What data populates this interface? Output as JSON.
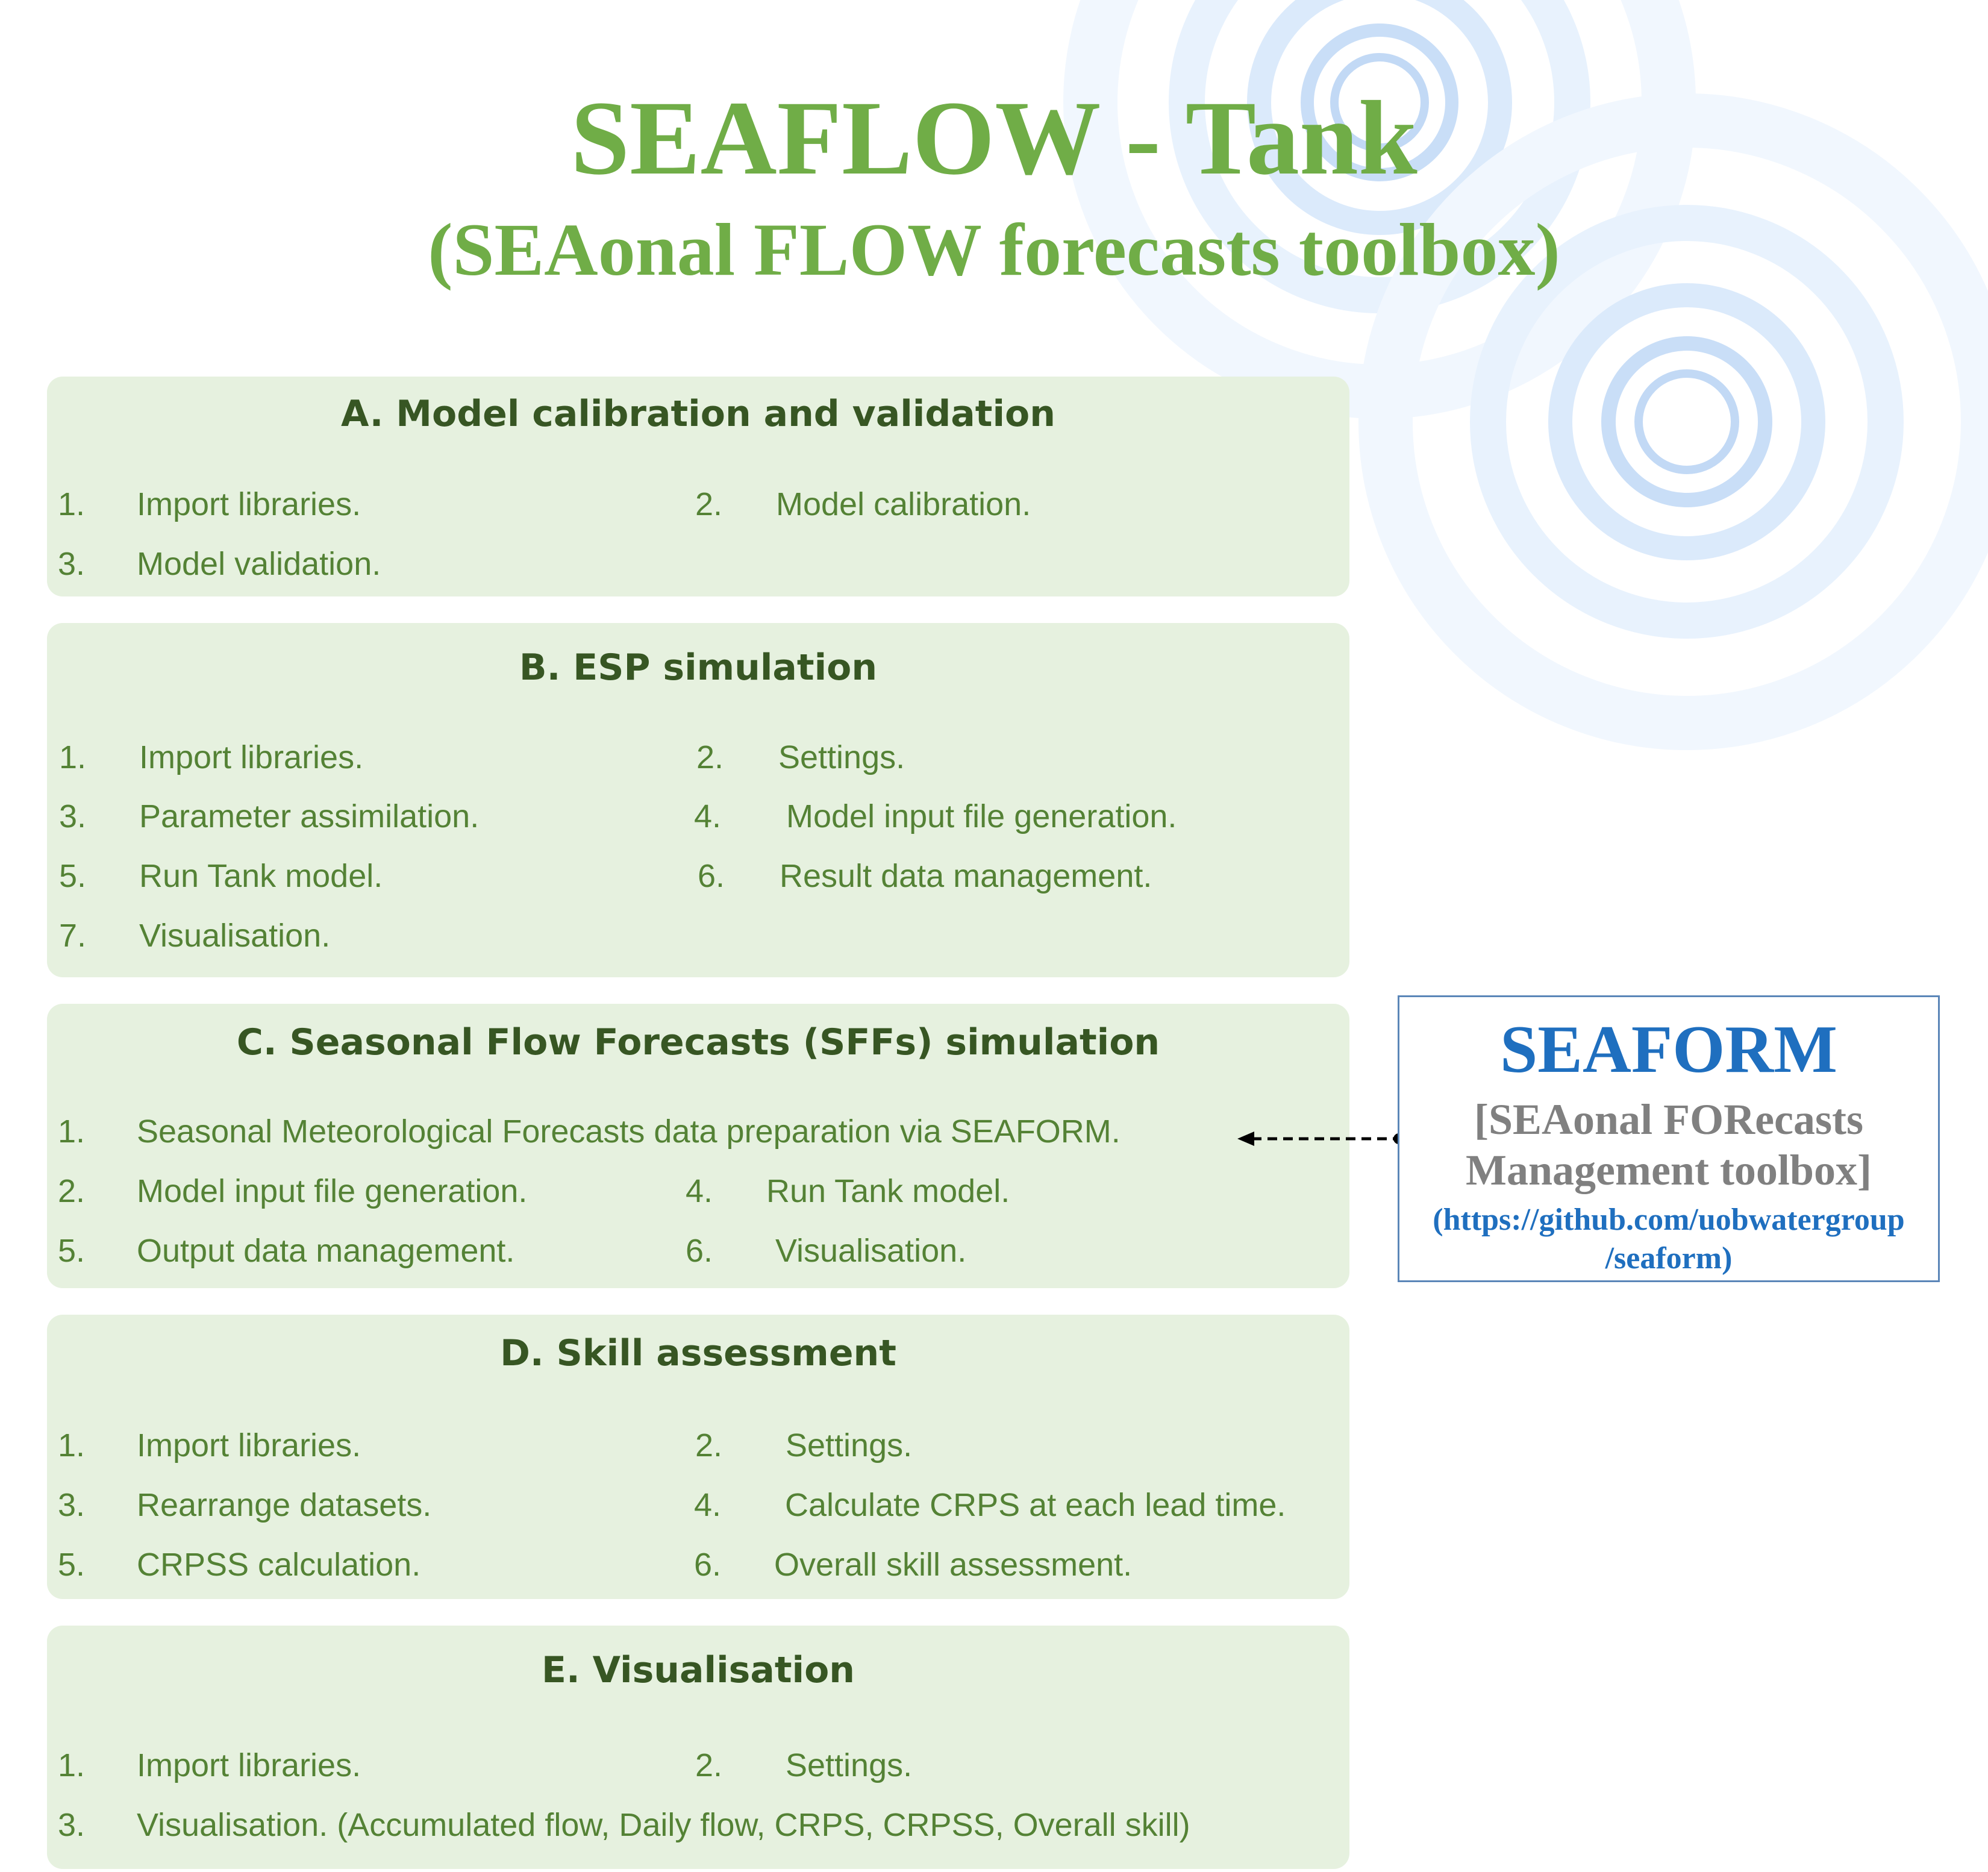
{
  "title": "SEAFLOW - Tank",
  "subtitle": "(SEAonal FLOW forecasts toolbox)",
  "sections": {
    "a": {
      "heading": "A. Model calibration and validation",
      "items": [
        {
          "num": "1.",
          "text": "Import libraries."
        },
        {
          "num": "2.",
          "text": "Model calibration."
        },
        {
          "num": "3.",
          "text": "Model validation."
        }
      ]
    },
    "b": {
      "heading": "B. ESP simulation",
      "items": [
        {
          "num": "1.",
          "text": "Import libraries."
        },
        {
          "num": "2.",
          "text": "Settings."
        },
        {
          "num": "3.",
          "text": "Parameter assimilation."
        },
        {
          "num": "4.",
          "text": "Model input file generation."
        },
        {
          "num": "5.",
          "text": "Run Tank model."
        },
        {
          "num": "6.",
          "text": "Result data management."
        },
        {
          "num": "7.",
          "text": "Visualisation."
        }
      ]
    },
    "c": {
      "heading": "C. Seasonal Flow Forecasts (SFFs) simulation",
      "items": [
        {
          "num": "1.",
          "text": "Seasonal Meteorological Forecasts data preparation via SEAFORM."
        },
        {
          "num": "2.",
          "text": "Model input file generation."
        },
        {
          "num": "4.",
          "text": "Run Tank model."
        },
        {
          "num": "5.",
          "text": "Output data management."
        },
        {
          "num": "6.",
          "text": "Visualisation."
        }
      ]
    },
    "d": {
      "heading": "D. Skill assessment",
      "items": [
        {
          "num": "1.",
          "text": "Import libraries."
        },
        {
          "num": "2.",
          "text": "Settings."
        },
        {
          "num": "3.",
          "text": "Rearrange datasets."
        },
        {
          "num": "4.",
          "text": "Calculate CRPS at each lead time."
        },
        {
          "num": "5.",
          "text": "CRPSS calculation."
        },
        {
          "num": "6.",
          "text": "Overall skill assessment."
        }
      ]
    },
    "e": {
      "heading": "E. Visualisation",
      "items": [
        {
          "num": "1.",
          "text": "Import libraries."
        },
        {
          "num": "2.",
          "text": "Settings."
        },
        {
          "num": "3.",
          "text": "Visualisation.  (Accumulated flow, Daily flow, CRPS, CRPSS, Overall skill)"
        }
      ]
    }
  },
  "seaform": {
    "title": "SEAFORM",
    "subtitle_line1": "[SEAonal FORecasts",
    "subtitle_line2": "Management toolbox]",
    "link_line1": "(https://github.com/uobwatergroup",
    "link_line2": "/seaform)"
  },
  "colors": {
    "title_green": "#70ad47",
    "panel_fill": "#e6f1df",
    "heading_dark_green": "#375623",
    "item_green": "#548235",
    "seaform_blue": "#1f6fbf",
    "seaform_gray": "#808080",
    "decor_circle_blue": "#bcd7f3"
  }
}
